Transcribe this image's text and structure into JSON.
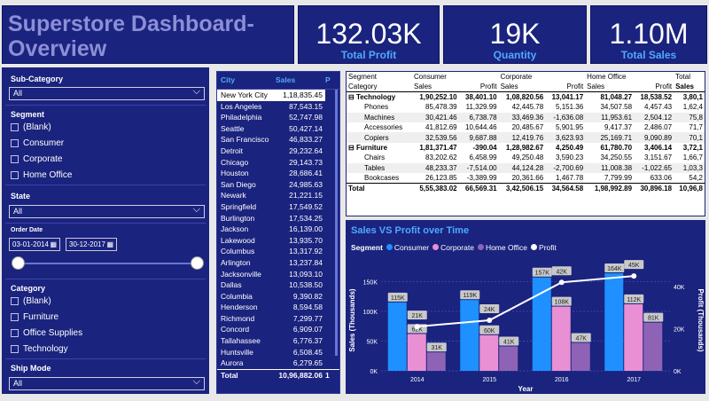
{
  "title": "Superstore Dashboard-Overview",
  "kpis": [
    {
      "value": "132.03K",
      "label": "Total Profit"
    },
    {
      "value": "19K",
      "label": "Quantity"
    },
    {
      "value": "1.10M",
      "label": "Total Sales"
    }
  ],
  "slicers": {
    "subcategory": {
      "title": "Sub-Category",
      "value": "All"
    },
    "segment": {
      "title": "Segment",
      "options": [
        "(Blank)",
        "Consumer",
        "Corporate",
        "Home Office"
      ]
    },
    "state": {
      "title": "State",
      "value": "All"
    },
    "order_date": {
      "title": "Order Date",
      "start": "03-01-2014",
      "end": "30-12-2017"
    },
    "category": {
      "title": "Category",
      "options": [
        "(Blank)",
        "Furniture",
        "Office Supplies",
        "Technology"
      ]
    },
    "ship_mode": {
      "title": "Ship Mode",
      "value": "All"
    }
  },
  "city_table": {
    "headers": [
      "City",
      "Sales",
      "P"
    ],
    "rows": [
      [
        "New York City",
        "1,18,835.45"
      ],
      [
        "Los Angeles",
        "87,543.15"
      ],
      [
        "Philadelphia",
        "52,747.98"
      ],
      [
        "Seattle",
        "50,427.14"
      ],
      [
        "San Francisco",
        "46,833.27"
      ],
      [
        "Detroit",
        "29,232.64"
      ],
      [
        "Chicago",
        "29,143.73"
      ],
      [
        "Houston",
        "28,686.41"
      ],
      [
        "San Diego",
        "24,985.63"
      ],
      [
        "Newark",
        "21,221.15"
      ],
      [
        "Springfield",
        "17,549.52"
      ],
      [
        "Burlington",
        "17,534.25"
      ],
      [
        "Jackson",
        "16,139.00"
      ],
      [
        "Lakewood",
        "13,935.70"
      ],
      [
        "Columbus",
        "13,317.92"
      ],
      [
        "Arlington",
        "13,237.84"
      ],
      [
        "Jacksonville",
        "13,093.10"
      ],
      [
        "Dallas",
        "10,538.50"
      ],
      [
        "Columbia",
        "9,390.82"
      ],
      [
        "Henderson",
        "8,594.58"
      ],
      [
        "Richmond",
        "7,299.77"
      ],
      [
        "Concord",
        "6,909.07"
      ],
      [
        "Tallahassee",
        "6,776.37"
      ],
      [
        "Huntsville",
        "6,508.45"
      ],
      [
        "Aurora",
        "6,279.65"
      ]
    ],
    "total": [
      "Total",
      "10,96,882.06",
      "1"
    ]
  },
  "matrix": {
    "header1": [
      "Segment",
      "Consumer",
      "",
      "Corporate",
      "",
      "Home Office",
      "",
      "Total"
    ],
    "header2": [
      "Category",
      "Sales",
      "Profit",
      "Sales",
      "Profit",
      "Sales",
      "Profit",
      "Sales"
    ],
    "rows": [
      {
        "kind": "grp",
        "cells": [
          "Technology",
          "1,90,252.10",
          "38,401.10",
          "1,08,820.56",
          "13,041.17",
          "81,048.27",
          "18,538.52",
          "3,80,1"
        ]
      },
      {
        "kind": "sub",
        "cells": [
          "Phones",
          "85,478.39",
          "11,329.99",
          "42,445.78",
          "5,151.36",
          "34,507.58",
          "4,457.43",
          "1,62,4"
        ]
      },
      {
        "kind": "sub",
        "cells": [
          "Machines",
          "30,421.46",
          "6,738.78",
          "33,469.36",
          "-1,636.08",
          "11,953.61",
          "2,504.12",
          "75,8"
        ]
      },
      {
        "kind": "sub",
        "cells": [
          "Accessories",
          "41,812.69",
          "10,644.46",
          "20,485.67",
          "5,901.95",
          "9,417.37",
          "2,486.07",
          "71,7"
        ]
      },
      {
        "kind": "sub",
        "cells": [
          "Copiers",
          "32,539.56",
          "9,687.88",
          "12,419.76",
          "3,623.93",
          "25,169.71",
          "9,090.89",
          "70,1"
        ]
      },
      {
        "kind": "grp",
        "cells": [
          "Furniture",
          "1,81,371.47",
          "-390.04",
          "1,28,982.67",
          "4,250.49",
          "61,780.70",
          "3,406.14",
          "3,72,1"
        ]
      },
      {
        "kind": "sub",
        "cells": [
          "Chairs",
          "83,202.62",
          "6,458.99",
          "49,250.48",
          "3,590.23",
          "34,250.55",
          "3,151.67",
          "1,66,7"
        ]
      },
      {
        "kind": "sub",
        "cells": [
          "Tables",
          "48,233.37",
          "-7,514.00",
          "44,124.28",
          "-2,700.69",
          "11,008.38",
          "-1,022.65",
          "1,03,3"
        ]
      },
      {
        "kind": "sub",
        "cells": [
          "Bookcases",
          "26,123.85",
          "-3,389.99",
          "20,361.66",
          "1,467.78",
          "7,799.99",
          "633.06",
          "54,2"
        ]
      },
      {
        "kind": "tot",
        "cells": [
          "Total",
          "5,55,383.02",
          "66,569.31",
          "3,42,506.15",
          "34,564.58",
          "1,98,992.89",
          "30,896.18",
          "10,96,8"
        ]
      }
    ]
  },
  "chart_data": {
    "type": "bar",
    "title": "Sales VS Profit over Time",
    "legend_title": "Segment",
    "categories": [
      "2014",
      "2015",
      "2016",
      "2017"
    ],
    "series": [
      {
        "name": "Consumer",
        "color": "#1e90ff",
        "values": [
          115,
          119,
          157,
          164
        ],
        "labels": [
          "115K",
          "119K",
          "157K",
          "164K"
        ]
      },
      {
        "name": "Corporate",
        "color": "#e98fd3",
        "values": [
          62,
          60,
          108,
          112
        ],
        "labels": [
          "62K",
          "60K",
          "108K",
          "112K"
        ]
      },
      {
        "name": "Home Office",
        "color": "#8e63b5",
        "values": [
          31,
          41,
          47,
          81
        ],
        "labels": [
          "31K",
          "41K",
          "47K",
          "81K"
        ]
      }
    ],
    "line": {
      "name": "Profit",
      "color": "#ffffff",
      "values": [
        21,
        24,
        42,
        45
      ],
      "labels": [
        "21K",
        "24K",
        "42K",
        "45K"
      ]
    },
    "xlabel": "Year",
    "ylabel": "Sales (Thousands)",
    "y2label": "Profit (Thousands)",
    "y_ticks": [
      "0K",
      "50K",
      "100K",
      "150K"
    ],
    "y2_ticks": [
      "0K",
      "20K",
      "40K"
    ],
    "ylim": [
      0,
      170
    ],
    "y2lim": [
      0,
      48
    ]
  }
}
